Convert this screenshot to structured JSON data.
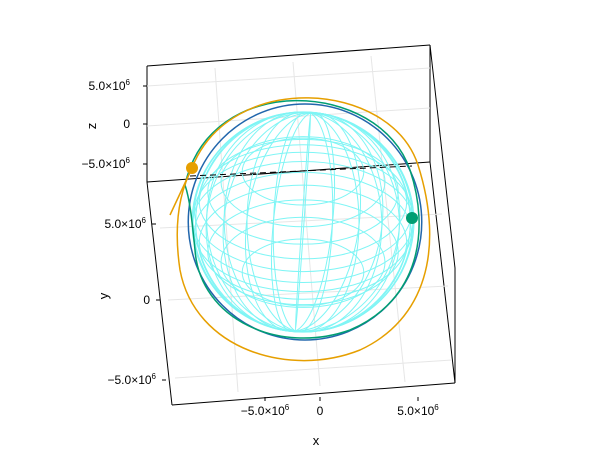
{
  "chart_data": {
    "type": "line",
    "projection": "3d",
    "title": "",
    "xlabel": "x",
    "ylabel": "y",
    "zlabel": "z",
    "x_ticks": [
      {
        "value": -5000000,
        "label_mantissa": "−5.0×10",
        "label_exp": "6"
      },
      {
        "value": 0,
        "label_mantissa": "0",
        "label_exp": ""
      },
      {
        "value": 5000000,
        "label_mantissa": "5.0×10",
        "label_exp": "6"
      }
    ],
    "y_ticks": [
      {
        "value": -5000000,
        "label_mantissa": "−5.0×10",
        "label_exp": "6"
      },
      {
        "value": 0,
        "label_mantissa": "0",
        "label_exp": ""
      },
      {
        "value": 5000000,
        "label_mantissa": "5.0×10",
        "label_exp": "6"
      }
    ],
    "z_ticks": [
      {
        "value": 5000000,
        "label_mantissa": "5.0×10",
        "label_exp": "6"
      },
      {
        "value": 0,
        "label_mantissa": "0",
        "label_exp": ""
      },
      {
        "value": -5000000,
        "label_mantissa": "−5.0×10",
        "label_exp": "6"
      }
    ],
    "grid": true,
    "sphere": {
      "radius": 6371000,
      "style": "wireframe",
      "color": "#7ff5f5"
    },
    "series": [
      {
        "color": "#2166ac",
        "orbit_radius": 6900000,
        "marker": false
      },
      {
        "color": "#009e73",
        "orbit_radius": 7400000,
        "marker": true,
        "marker_position": "right"
      },
      {
        "color": "#e69f00",
        "orbit_radius": 7600000,
        "marker": true,
        "marker_position": "upper-left"
      }
    ]
  }
}
